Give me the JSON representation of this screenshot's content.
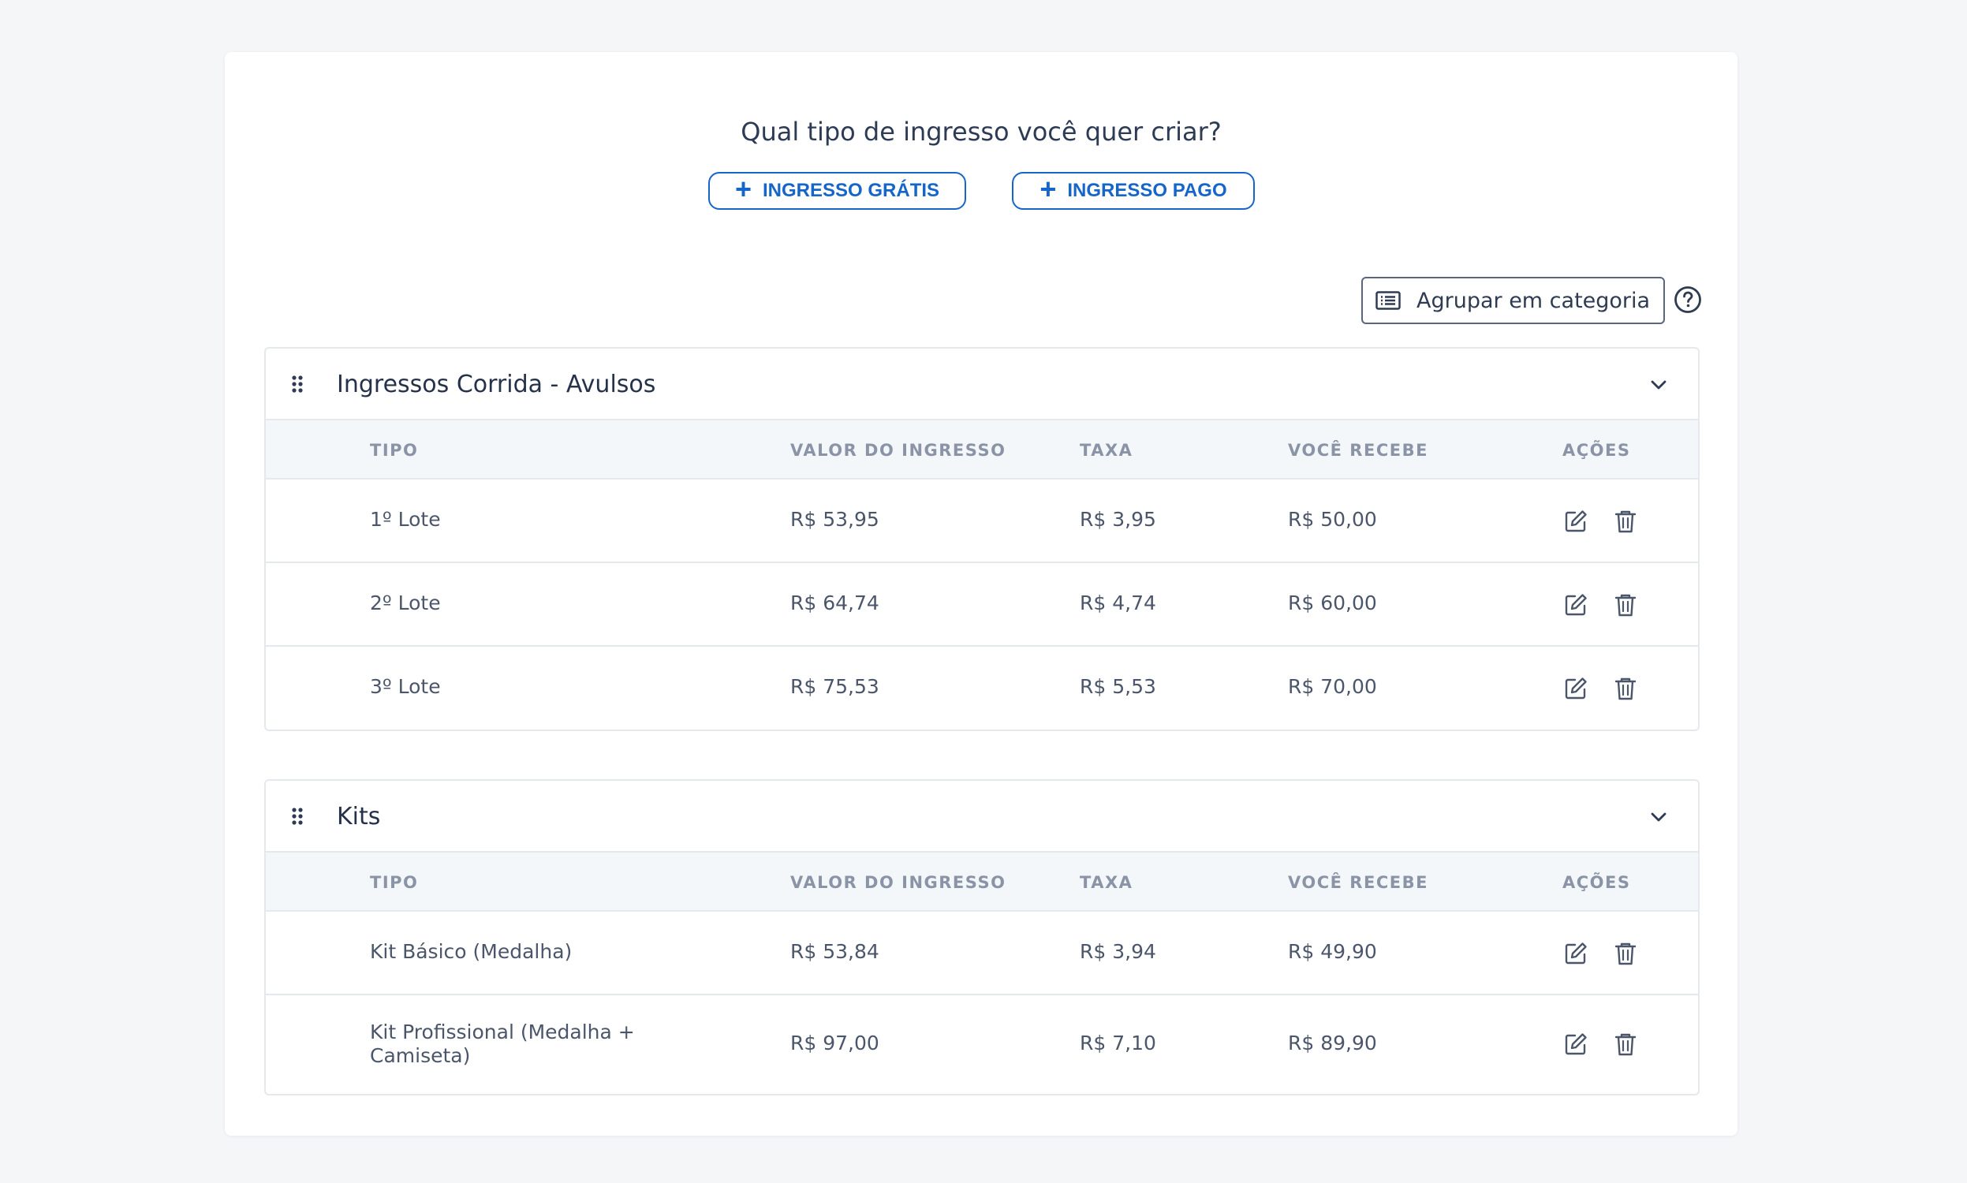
{
  "header": {
    "question": "Qual tipo de ingresso você quer criar?",
    "free_button": "INGRESSO GRÁTIS",
    "paid_button": "INGRESSO PAGO"
  },
  "toolbar": {
    "group_button": "Agrupar em categoria"
  },
  "columns": [
    "TIPO",
    "VALOR DO INGRESSO",
    "TAXA",
    "VOCÊ RECEBE",
    "AÇÕES"
  ],
  "categories": [
    {
      "title": "Ingressos Corrida - Avulsos",
      "rows": [
        {
          "tipo": "1º Lote",
          "valor": "R$ 53,95",
          "taxa": "R$ 3,95",
          "recebe": "R$ 50,00"
        },
        {
          "tipo": "2º Lote",
          "valor": "R$ 64,74",
          "taxa": "R$ 4,74",
          "recebe": "R$ 60,00"
        },
        {
          "tipo": "3º Lote",
          "valor": "R$ 75,53",
          "taxa": "R$ 5,53",
          "recebe": "R$ 70,00"
        }
      ]
    },
    {
      "title": "Kits",
      "rows": [
        {
          "tipo": "Kit Básico (Medalha)",
          "valor": "R$ 53,84",
          "taxa": "R$ 3,94",
          "recebe": "R$ 49,90"
        },
        {
          "tipo": "Kit Profissional (Medalha + Camiseta)",
          "valor": "R$ 97,00",
          "taxa": "R$ 7,10",
          "recebe": "R$ 89,90"
        }
      ]
    }
  ],
  "colors": {
    "accent": "#1665c9",
    "background": "#f5f6f8",
    "header_row": "#f4f7fa",
    "border": "#e5e8ed"
  },
  "icons": [
    "plus-icon",
    "list-icon",
    "help-icon",
    "drag-handle-icon",
    "chevron-down-icon",
    "edit-icon",
    "trash-icon"
  ]
}
